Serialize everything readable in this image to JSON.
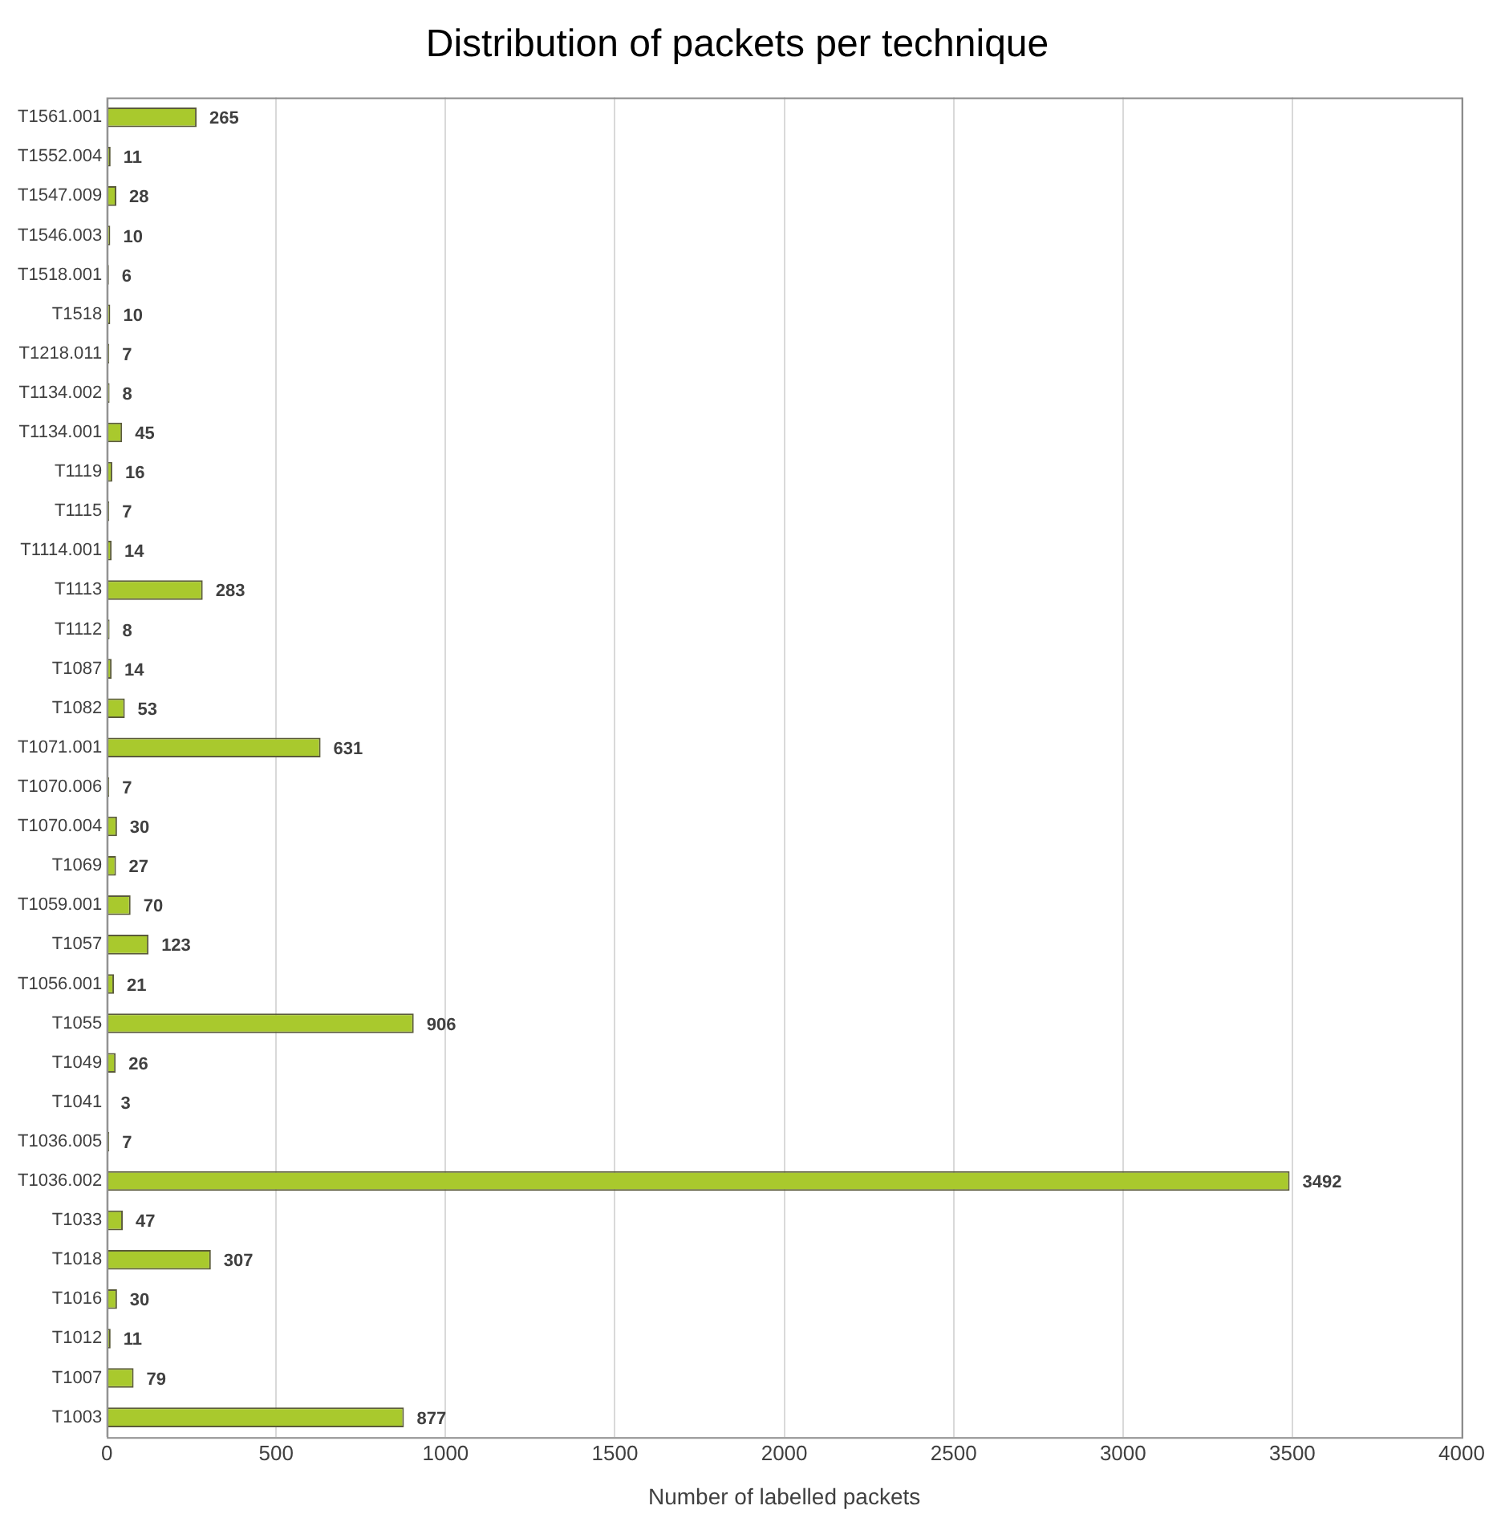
{
  "chart_data": {
    "type": "bar",
    "orientation": "horizontal",
    "title": "Distribution of packets per technique",
    "xlabel": "Number of labelled packets",
    "categories": [
      "T1561.001",
      "T1552.004",
      "T1547.009",
      "T1546.003",
      "T1518.001",
      "T1518",
      "T1218.011",
      "T1134.002",
      "T1134.001",
      "T1119",
      "T1115",
      "T1114.001",
      "T1113",
      "T1112",
      "T1087",
      "T1082",
      "T1071.001",
      "T1070.006",
      "T1070.004",
      "T1069",
      "T1059.001",
      "T1057",
      "T1056.001",
      "T1055",
      "T1049",
      "T1041",
      "T1036.005",
      "T1036.002",
      "T1033",
      "T1018",
      "T1016",
      "T1012",
      "T1007",
      "T1003"
    ],
    "values": [
      265,
      11,
      28,
      10,
      6,
      10,
      7,
      8,
      45,
      16,
      7,
      14,
      283,
      8,
      14,
      53,
      631,
      7,
      30,
      27,
      70,
      123,
      21,
      906,
      26,
      3,
      7,
      3492,
      47,
      307,
      30,
      11,
      79,
      877
    ],
    "color": "#a9c92d",
    "xlim": [
      0,
      4000
    ],
    "xticks": [
      0,
      500,
      1000,
      1500,
      2000,
      2500,
      3000,
      3500,
      4000
    ],
    "grid": "x",
    "data_labels": true,
    "legend": false
  }
}
